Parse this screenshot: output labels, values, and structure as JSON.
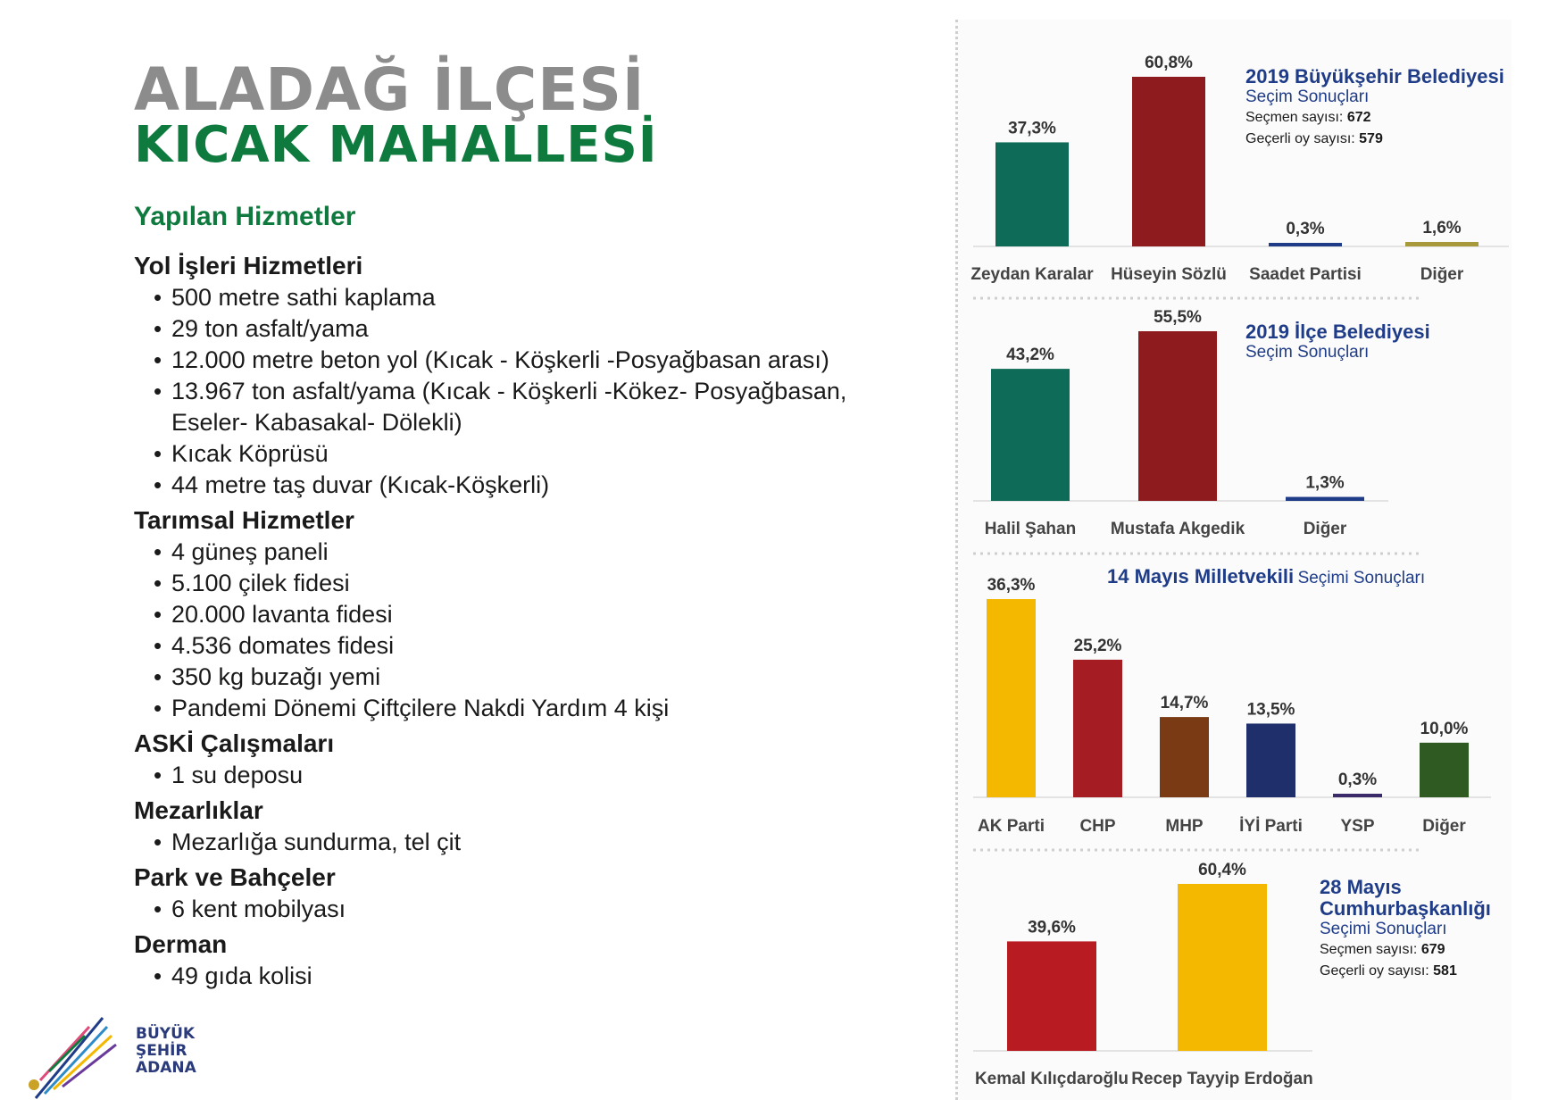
{
  "header": {
    "line1": "ALADAĞ İLÇESİ",
    "line2": "KICAK MAHALLESİ"
  },
  "services_heading": "Yapılan Hizmetler",
  "sections": [
    {
      "title": "Yol İşleri Hizmetleri",
      "items": [
        "500 metre sathi kaplama",
        "29 ton asfalt/yama",
        "12.000 metre beton yol (Kıcak - Köşkerli -Posyağbasan arası)",
        "13.967 ton asfalt/yama (Kıcak - Köşkerli -Kökez- Posyağbasan, Eseler- Kabasakal- Dölekli)",
        "Kıcak Köprüsü",
        "44 metre taş duvar (Kıcak-Köşkerli)"
      ]
    },
    {
      "title": "Tarımsal Hizmetler",
      "items": [
        "4 güneş paneli",
        "5.100 çilek fidesi",
        "20.000 lavanta fidesi",
        "4.536 domates fidesi",
        "350 kg buzağı yemi",
        "Pandemi Dönemi Çiftçilere Nakdi Yardım 4 kişi"
      ]
    },
    {
      "title": "ASKİ Çalışmaları",
      "items": [
        "1 su deposu"
      ]
    },
    {
      "title": "Mezarlıklar",
      "items": [
        "Mezarlığa sundurma, tel çit"
      ]
    },
    {
      "title": "Park ve Bahçeler",
      "items": [
        "6 kent mobilyası"
      ]
    },
    {
      "title": "Derman",
      "items": [
        "49 gıda kolisi"
      ]
    }
  ],
  "logo": {
    "line1": "BÜYÜK",
    "line2": "ŞEHİR",
    "line3": "ADANA"
  },
  "chart_data": [
    {
      "type": "bar",
      "title_line1": "2019 Büyükşehir Belediyesi",
      "title_line2": "Seçim Sonuçları",
      "voters_label": "Seçmen sayısı:",
      "voters": "672",
      "valid_label": "Geçerli oy sayısı:",
      "valid": "579",
      "categories": [
        "Zeydan Karalar",
        "Hüseyin Sözlü",
        "Saadet Partisi",
        "Diğer"
      ],
      "values": [
        37.3,
        60.8,
        0.3,
        1.6
      ],
      "labels": [
        "37,3%",
        "60,8%",
        "0,3%",
        "1,6%"
      ],
      "colors": [
        "#0e6b57",
        "#8e1b1d",
        "#1f3c88",
        "#a89a3a"
      ]
    },
    {
      "type": "bar",
      "title_line1": "2019 İlçe Belediyesi",
      "title_line2": "Seçim Sonuçları",
      "categories": [
        "Halil Şahan",
        "Mustafa Akgedik",
        "Diğer"
      ],
      "values": [
        43.2,
        55.5,
        1.3
      ],
      "labels": [
        "43,2%",
        "55,5%",
        "1,3%"
      ],
      "colors": [
        "#0e6b57",
        "#8e1b1d",
        "#1f3c88"
      ]
    },
    {
      "type": "bar",
      "title_bold": "14 Mayıs Milletvekili",
      "title_rest": "Seçimi Sonuçları",
      "categories": [
        "AK Parti",
        "CHP",
        "MHP",
        "İYİ Parti",
        "YSP",
        "Diğer"
      ],
      "values": [
        36.3,
        25.2,
        14.7,
        13.5,
        0.3,
        10.0
      ],
      "labels": [
        "36,3%",
        "25,2%",
        "14,7%",
        "13,5%",
        "0,3%",
        "10,0%"
      ],
      "colors": [
        "#f5b800",
        "#a51c22",
        "#7a3a14",
        "#1f2f6b",
        "#3a2a6a",
        "#2f5a22"
      ]
    },
    {
      "type": "bar",
      "title_line1": "28 Mayıs",
      "title_line2": "Cumhurbaşkanlığı",
      "title_line3": "Seçimi Sonuçları",
      "voters_label": "Seçmen sayısı:",
      "voters": "679",
      "valid_label": "Geçerli oy sayısı:",
      "valid": "581",
      "categories": [
        "Kemal Kılıçdaroğlu",
        "Recep Tayyip Erdoğan"
      ],
      "values": [
        39.6,
        60.4
      ],
      "labels": [
        "39,6%",
        "60,4%"
      ],
      "colors": [
        "#b81c22",
        "#f5b800"
      ]
    }
  ]
}
